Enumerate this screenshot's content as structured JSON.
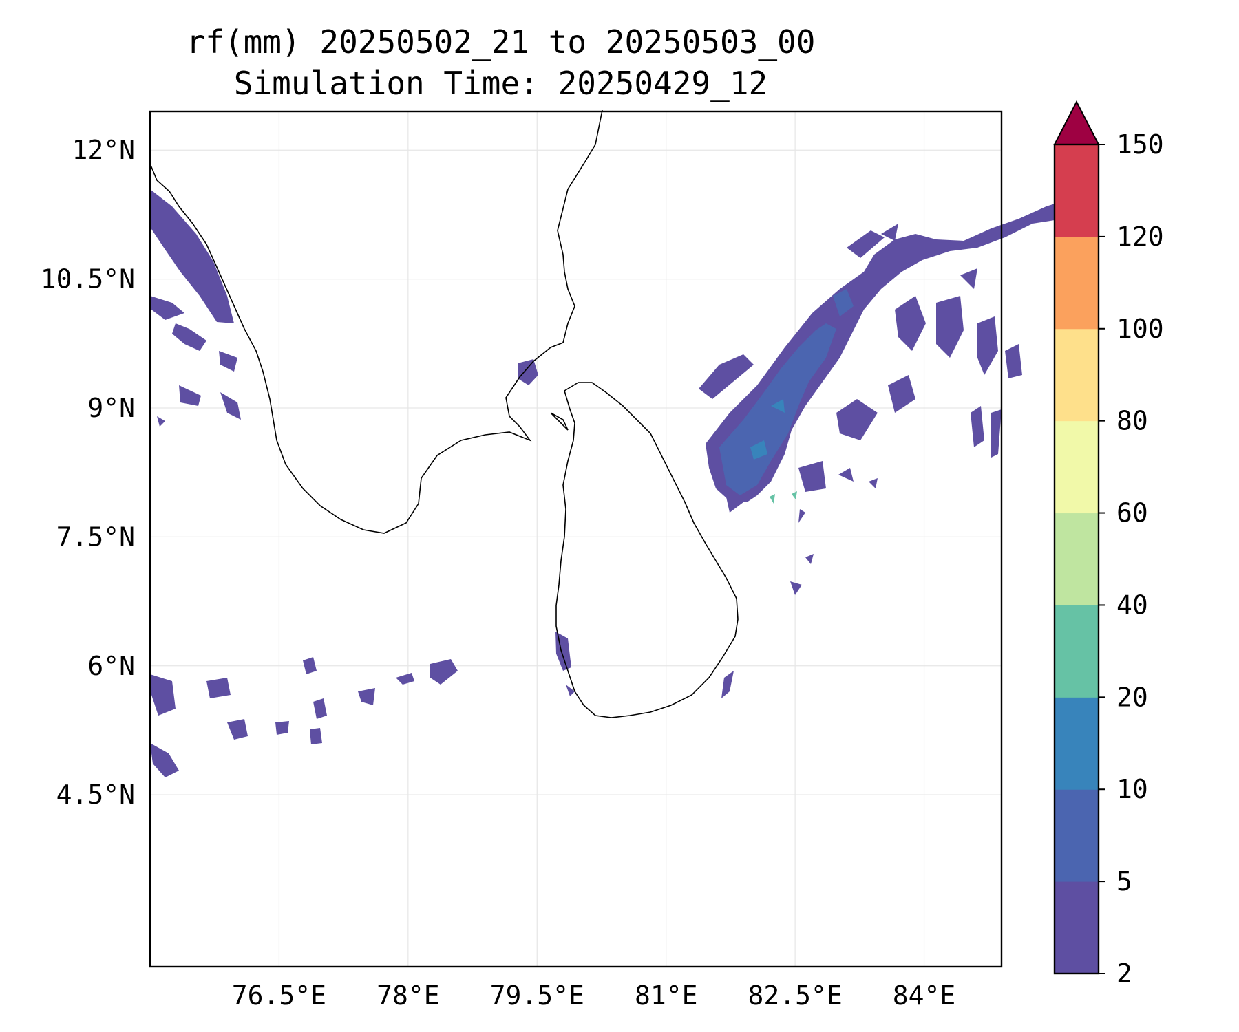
{
  "title": {
    "line1": "rf(mm) 20250502_21 to 20250503_00",
    "line2": "Simulation Time: 20250429_12"
  },
  "map": {
    "lon_range": [
      75,
      84.9
    ],
    "lat_range": [
      2.5,
      12.45
    ],
    "lon_ticks": [
      76.5,
      78,
      79.5,
      81,
      82.5,
      84
    ],
    "lat_ticks": [
      4.5,
      6,
      7.5,
      9,
      10.5,
      12
    ],
    "lon_tick_labels": [
      "76.5°E",
      "78°E",
      "79.5°E",
      "81°E",
      "82.5°E",
      "84°E"
    ],
    "lat_tick_labels": [
      "4.5°N",
      "6°N",
      "7.5°N",
      "9°N",
      "10.5°N",
      "12°N"
    ],
    "gridlines": true,
    "coastline_color": "#000000",
    "background": "#ffffff",
    "variable": "rf(mm)"
  },
  "colorbar": {
    "levels": [
      2,
      5,
      10,
      20,
      40,
      60,
      80,
      100,
      120,
      150
    ],
    "tick_labels": [
      "2",
      "5",
      "10",
      "20",
      "40",
      "60",
      "80",
      "100",
      "120",
      "150"
    ],
    "colors": [
      "#5e4fa2",
      "#4b65b0",
      "#3884bb",
      "#66c2a5",
      "#bfe5a0",
      "#f1f9a9",
      "#fee08b",
      "#fba15d",
      "#d53e4f"
    ],
    "extend_color": "#9e0142",
    "extend": "max"
  }
}
